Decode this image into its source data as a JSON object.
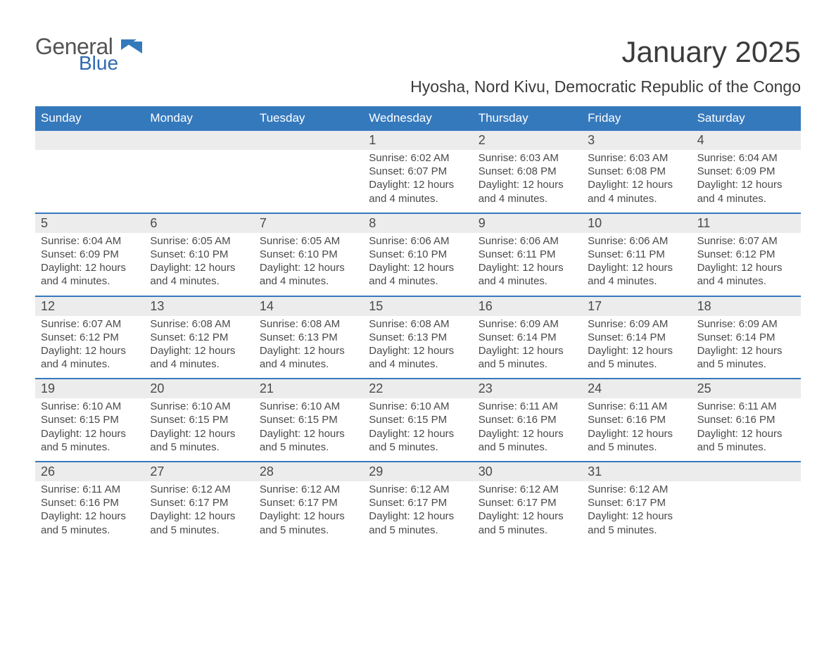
{
  "logo": {
    "general": "General",
    "blue": "Blue",
    "flag_color": "#3579bd"
  },
  "title": "January 2025",
  "subtitle": "Hyosha, Nord Kivu, Democratic Republic of the Congo",
  "colors": {
    "header_bg": "#3579bd",
    "header_text": "#ffffff",
    "daynum_bg": "#ececec",
    "text": "#4a4a4a",
    "accent": "#3579bd"
  },
  "daysOfWeek": [
    "Sunday",
    "Monday",
    "Tuesday",
    "Wednesday",
    "Thursday",
    "Friday",
    "Saturday"
  ],
  "weeks": [
    [
      {
        "n": null
      },
      {
        "n": null
      },
      {
        "n": null
      },
      {
        "n": "1",
        "sunrise": "Sunrise: 6:02 AM",
        "sunset": "Sunset: 6:07 PM",
        "daylight": "Daylight: 12 hours and 4 minutes."
      },
      {
        "n": "2",
        "sunrise": "Sunrise: 6:03 AM",
        "sunset": "Sunset: 6:08 PM",
        "daylight": "Daylight: 12 hours and 4 minutes."
      },
      {
        "n": "3",
        "sunrise": "Sunrise: 6:03 AM",
        "sunset": "Sunset: 6:08 PM",
        "daylight": "Daylight: 12 hours and 4 minutes."
      },
      {
        "n": "4",
        "sunrise": "Sunrise: 6:04 AM",
        "sunset": "Sunset: 6:09 PM",
        "daylight": "Daylight: 12 hours and 4 minutes."
      }
    ],
    [
      {
        "n": "5",
        "sunrise": "Sunrise: 6:04 AM",
        "sunset": "Sunset: 6:09 PM",
        "daylight": "Daylight: 12 hours and 4 minutes."
      },
      {
        "n": "6",
        "sunrise": "Sunrise: 6:05 AM",
        "sunset": "Sunset: 6:10 PM",
        "daylight": "Daylight: 12 hours and 4 minutes."
      },
      {
        "n": "7",
        "sunrise": "Sunrise: 6:05 AM",
        "sunset": "Sunset: 6:10 PM",
        "daylight": "Daylight: 12 hours and 4 minutes."
      },
      {
        "n": "8",
        "sunrise": "Sunrise: 6:06 AM",
        "sunset": "Sunset: 6:10 PM",
        "daylight": "Daylight: 12 hours and 4 minutes."
      },
      {
        "n": "9",
        "sunrise": "Sunrise: 6:06 AM",
        "sunset": "Sunset: 6:11 PM",
        "daylight": "Daylight: 12 hours and 4 minutes."
      },
      {
        "n": "10",
        "sunrise": "Sunrise: 6:06 AM",
        "sunset": "Sunset: 6:11 PM",
        "daylight": "Daylight: 12 hours and 4 minutes."
      },
      {
        "n": "11",
        "sunrise": "Sunrise: 6:07 AM",
        "sunset": "Sunset: 6:12 PM",
        "daylight": "Daylight: 12 hours and 4 minutes."
      }
    ],
    [
      {
        "n": "12",
        "sunrise": "Sunrise: 6:07 AM",
        "sunset": "Sunset: 6:12 PM",
        "daylight": "Daylight: 12 hours and 4 minutes."
      },
      {
        "n": "13",
        "sunrise": "Sunrise: 6:08 AM",
        "sunset": "Sunset: 6:12 PM",
        "daylight": "Daylight: 12 hours and 4 minutes."
      },
      {
        "n": "14",
        "sunrise": "Sunrise: 6:08 AM",
        "sunset": "Sunset: 6:13 PM",
        "daylight": "Daylight: 12 hours and 4 minutes."
      },
      {
        "n": "15",
        "sunrise": "Sunrise: 6:08 AM",
        "sunset": "Sunset: 6:13 PM",
        "daylight": "Daylight: 12 hours and 4 minutes."
      },
      {
        "n": "16",
        "sunrise": "Sunrise: 6:09 AM",
        "sunset": "Sunset: 6:14 PM",
        "daylight": "Daylight: 12 hours and 5 minutes."
      },
      {
        "n": "17",
        "sunrise": "Sunrise: 6:09 AM",
        "sunset": "Sunset: 6:14 PM",
        "daylight": "Daylight: 12 hours and 5 minutes."
      },
      {
        "n": "18",
        "sunrise": "Sunrise: 6:09 AM",
        "sunset": "Sunset: 6:14 PM",
        "daylight": "Daylight: 12 hours and 5 minutes."
      }
    ],
    [
      {
        "n": "19",
        "sunrise": "Sunrise: 6:10 AM",
        "sunset": "Sunset: 6:15 PM",
        "daylight": "Daylight: 12 hours and 5 minutes."
      },
      {
        "n": "20",
        "sunrise": "Sunrise: 6:10 AM",
        "sunset": "Sunset: 6:15 PM",
        "daylight": "Daylight: 12 hours and 5 minutes."
      },
      {
        "n": "21",
        "sunrise": "Sunrise: 6:10 AM",
        "sunset": "Sunset: 6:15 PM",
        "daylight": "Daylight: 12 hours and 5 minutes."
      },
      {
        "n": "22",
        "sunrise": "Sunrise: 6:10 AM",
        "sunset": "Sunset: 6:15 PM",
        "daylight": "Daylight: 12 hours and 5 minutes."
      },
      {
        "n": "23",
        "sunrise": "Sunrise: 6:11 AM",
        "sunset": "Sunset: 6:16 PM",
        "daylight": "Daylight: 12 hours and 5 minutes."
      },
      {
        "n": "24",
        "sunrise": "Sunrise: 6:11 AM",
        "sunset": "Sunset: 6:16 PM",
        "daylight": "Daylight: 12 hours and 5 minutes."
      },
      {
        "n": "25",
        "sunrise": "Sunrise: 6:11 AM",
        "sunset": "Sunset: 6:16 PM",
        "daylight": "Daylight: 12 hours and 5 minutes."
      }
    ],
    [
      {
        "n": "26",
        "sunrise": "Sunrise: 6:11 AM",
        "sunset": "Sunset: 6:16 PM",
        "daylight": "Daylight: 12 hours and 5 minutes."
      },
      {
        "n": "27",
        "sunrise": "Sunrise: 6:12 AM",
        "sunset": "Sunset: 6:17 PM",
        "daylight": "Daylight: 12 hours and 5 minutes."
      },
      {
        "n": "28",
        "sunrise": "Sunrise: 6:12 AM",
        "sunset": "Sunset: 6:17 PM",
        "daylight": "Daylight: 12 hours and 5 minutes."
      },
      {
        "n": "29",
        "sunrise": "Sunrise: 6:12 AM",
        "sunset": "Sunset: 6:17 PM",
        "daylight": "Daylight: 12 hours and 5 minutes."
      },
      {
        "n": "30",
        "sunrise": "Sunrise: 6:12 AM",
        "sunset": "Sunset: 6:17 PM",
        "daylight": "Daylight: 12 hours and 5 minutes."
      },
      {
        "n": "31",
        "sunrise": "Sunrise: 6:12 AM",
        "sunset": "Sunset: 6:17 PM",
        "daylight": "Daylight: 12 hours and 5 minutes."
      },
      {
        "n": null
      }
    ]
  ]
}
